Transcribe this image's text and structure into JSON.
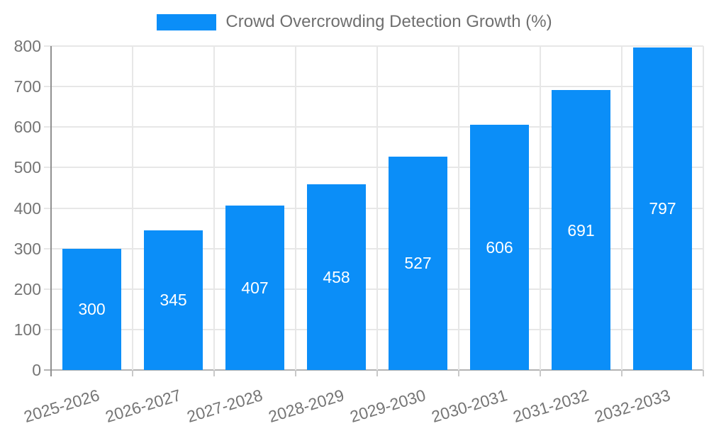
{
  "chart_data": {
    "type": "bar",
    "title": "Crowd Overcrowding Detection Growth (%)",
    "legend": {
      "position": "top-center",
      "entries": [
        "Crowd Overcrowding Detection Growth (%)"
      ]
    },
    "categories": [
      "2025-2026",
      "2026-2027",
      "2027-2028",
      "2028-2029",
      "2029-2030",
      "2030-2031",
      "2031-2032",
      "2032-2033"
    ],
    "values": [
      300,
      345,
      407,
      458,
      527,
      606,
      691,
      797
    ],
    "value_labels_shown_inside_bars": true,
    "xlabel": "",
    "ylabel": "",
    "ylim": [
      0,
      800
    ],
    "yticks": [
      0,
      100,
      200,
      300,
      400,
      500,
      600,
      700,
      800
    ],
    "grid": true,
    "x_tick_rotation_deg": -17,
    "colors": {
      "bar": "#0b8ef8",
      "value_label": "#ffffff",
      "axis_text": "#757575",
      "legend_text": "#6f6f6f",
      "gridline": "#e7e7e7",
      "baseline": "#b3b3b3",
      "axis_line": "#909090",
      "tick_mark": "#c9c9c9",
      "background": "#ffffff"
    }
  }
}
